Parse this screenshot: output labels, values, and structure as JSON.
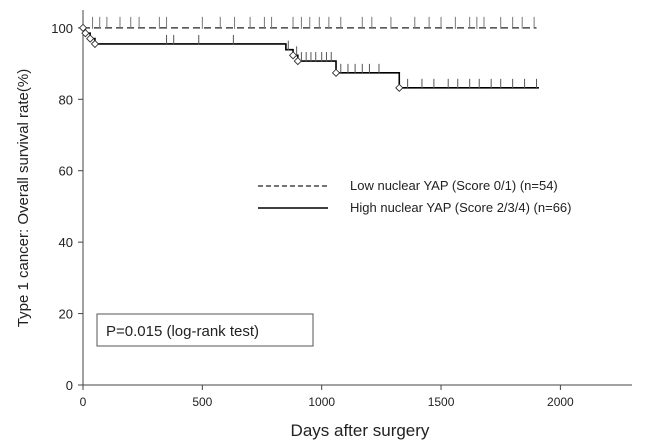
{
  "chart_data": {
    "type": "line",
    "chart_kind": "kaplan-meier",
    "xlabel": "Days after surgery",
    "ylabel": "Type 1 cancer: Overall survival rate(%)",
    "xlim": [
      0,
      2300
    ],
    "ylim": [
      0,
      105
    ],
    "xticks": [
      0,
      500,
      1000,
      1500,
      2000
    ],
    "yticks": [
      0,
      20,
      40,
      60,
      80,
      100
    ],
    "grid": false,
    "legend_position": "center-right",
    "annotation": "P=0.015 (log-rank test)",
    "series": [
      {
        "name": "Low nuclear YAP (Score 0/1) (n=54)",
        "line_style": "dashed",
        "color": "#222222",
        "steps": [
          [
            0,
            100
          ],
          [
            1900,
            100
          ]
        ],
        "events": [],
        "censored": [
          [
            40,
            100
          ],
          [
            70,
            100
          ],
          [
            100,
            100
          ],
          [
            155,
            100
          ],
          [
            200,
            100
          ],
          [
            235,
            100
          ],
          [
            320,
            100
          ],
          [
            350,
            100
          ],
          [
            500,
            100
          ],
          [
            575,
            100
          ],
          [
            635,
            100
          ],
          [
            700,
            100
          ],
          [
            760,
            100
          ],
          [
            790,
            100
          ],
          [
            880,
            100
          ],
          [
            915,
            100
          ],
          [
            950,
            100
          ],
          [
            990,
            100
          ],
          [
            1030,
            100
          ],
          [
            1080,
            100
          ],
          [
            1170,
            100
          ],
          [
            1210,
            100
          ],
          [
            1290,
            100
          ],
          [
            1390,
            100
          ],
          [
            1450,
            100
          ],
          [
            1500,
            100
          ],
          [
            1560,
            100
          ],
          [
            1620,
            100
          ],
          [
            1650,
            100
          ],
          [
            1680,
            100
          ],
          [
            1750,
            100
          ],
          [
            1800,
            100
          ],
          [
            1840,
            100
          ],
          [
            1890,
            100
          ]
        ]
      },
      {
        "name": "High nuclear YAP (Score 2/3/4) (n=66)",
        "line_style": "solid",
        "color": "#000000",
        "steps": [
          [
            0,
            100
          ],
          [
            10,
            98.5
          ],
          [
            30,
            97
          ],
          [
            50,
            95.5
          ],
          [
            850,
            93.9
          ],
          [
            880,
            92.3
          ],
          [
            900,
            90.7
          ],
          [
            1060,
            87.4
          ],
          [
            1325,
            83.2
          ],
          [
            1910,
            83.2
          ]
        ],
        "events": [
          [
            10,
            98.5
          ],
          [
            30,
            97
          ],
          [
            50,
            95.5
          ],
          [
            880,
            92.3
          ],
          [
            900,
            90.7
          ],
          [
            1060,
            87.4
          ],
          [
            1325,
            83.2
          ]
        ],
        "censored": [
          [
            350,
            95.5
          ],
          [
            380,
            95.5
          ],
          [
            485,
            95.5
          ],
          [
            630,
            95.5
          ],
          [
            860,
            93.9
          ],
          [
            895,
            92.3
          ],
          [
            915,
            90.7
          ],
          [
            935,
            90.7
          ],
          [
            955,
            90.7
          ],
          [
            975,
            90.7
          ],
          [
            1000,
            90.7
          ],
          [
            1020,
            90.7
          ],
          [
            1040,
            90.7
          ],
          [
            1080,
            87.4
          ],
          [
            1110,
            87.4
          ],
          [
            1140,
            87.4
          ],
          [
            1170,
            87.4
          ],
          [
            1200,
            87.4
          ],
          [
            1240,
            87.4
          ],
          [
            1360,
            83.2
          ],
          [
            1420,
            83.2
          ],
          [
            1470,
            83.2
          ],
          [
            1530,
            83.2
          ],
          [
            1570,
            83.2
          ],
          [
            1620,
            83.2
          ],
          [
            1660,
            83.2
          ],
          [
            1710,
            83.2
          ],
          [
            1750,
            83.2
          ],
          [
            1800,
            83.2
          ],
          [
            1850,
            83.2
          ],
          [
            1900,
            83.2
          ]
        ]
      }
    ]
  }
}
